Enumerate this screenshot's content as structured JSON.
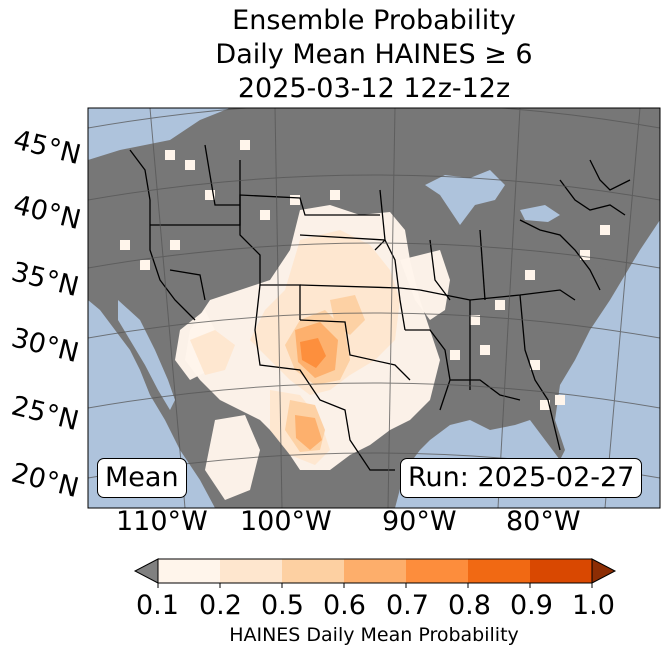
{
  "title": {
    "line1": "Ensemble Probability",
    "line2": "Daily Mean HAINES ≥ 6",
    "line3": "2025-03-12 12z-12z"
  },
  "map": {
    "projection": "conic",
    "region": "Continental United States",
    "ocean_color": "#aec3dc",
    "land_masked_color": "#777777",
    "lat_labels": [
      "45°N",
      "40°N",
      "35°N",
      "30°N",
      "25°N",
      "20°N"
    ],
    "lon_labels": [
      "110°W",
      "100°W",
      "90°W",
      "80°W"
    ]
  },
  "annotations": {
    "mean_label": "Mean",
    "run_label": "Run: 2025-02-27"
  },
  "colorbar": {
    "label": "HAINES Daily Mean Probability",
    "ticks": [
      "0.1",
      "0.2",
      "0.5",
      "0.6",
      "0.7",
      "0.8",
      "0.9",
      "1.0"
    ],
    "colors": [
      "#fff5eb",
      "#fee6ce",
      "#fdd0a2",
      "#fdae6b",
      "#fd8d3c",
      "#f16913",
      "#d94801"
    ],
    "under_color": "#808080",
    "over_color": "#8c2d04"
  }
}
